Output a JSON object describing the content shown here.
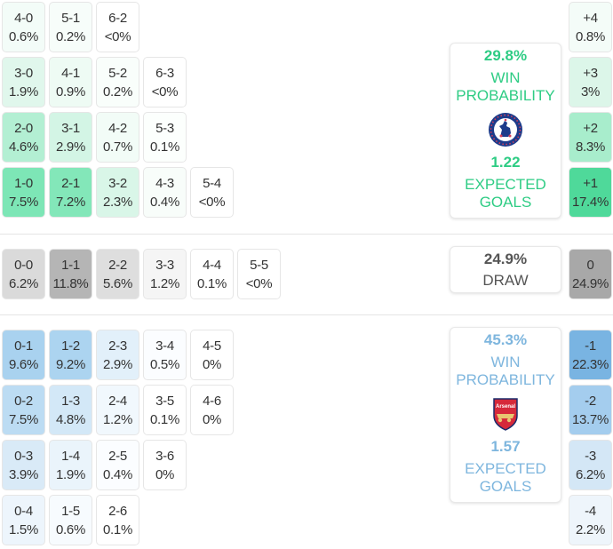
{
  "colors": {
    "home_accent": "#2ecc84",
    "away_accent": "#7eb6de",
    "draw_text": "#555555"
  },
  "home_scores": [
    [
      {
        "score": "4-0",
        "pct": "0.6%",
        "bg": "#f3fcf8"
      },
      {
        "score": "5-1",
        "pct": "0.2%",
        "bg": "#f7fdfa"
      },
      {
        "score": "6-2",
        "pct": "<0%",
        "bg": "#ffffff"
      }
    ],
    [
      {
        "score": "3-0",
        "pct": "1.9%",
        "bg": "#e0f7ec"
      },
      {
        "score": "4-1",
        "pct": "0.9%",
        "bg": "#eefbf4"
      },
      {
        "score": "5-2",
        "pct": "0.2%",
        "bg": "#f9fefb"
      },
      {
        "score": "6-3",
        "pct": "<0%",
        "bg": "#ffffff"
      }
    ],
    [
      {
        "score": "2-0",
        "pct": "4.6%",
        "bg": "#b3efd3"
      },
      {
        "score": "3-1",
        "pct": "2.9%",
        "bg": "#d3f5e5"
      },
      {
        "score": "4-2",
        "pct": "0.7%",
        "bg": "#f2fcf7"
      },
      {
        "score": "5-3",
        "pct": "0.1%",
        "bg": "#fcfffd"
      }
    ],
    [
      {
        "score": "1-0",
        "pct": "7.5%",
        "bg": "#7de6b6"
      },
      {
        "score": "2-1",
        "pct": "7.2%",
        "bg": "#83e7b9"
      },
      {
        "score": "3-2",
        "pct": "2.3%",
        "bg": "#d9f6e8"
      },
      {
        "score": "4-3",
        "pct": "0.4%",
        "bg": "#f8fdfa"
      },
      {
        "score": "5-4",
        "pct": "<0%",
        "bg": "#ffffff"
      }
    ]
  ],
  "draw_scores": [
    {
      "score": "0-0",
      "pct": "6.2%",
      "bg": "#dadada"
    },
    {
      "score": "1-1",
      "pct": "11.8%",
      "bg": "#b5b5b5"
    },
    {
      "score": "2-2",
      "pct": "5.6%",
      "bg": "#dedede"
    },
    {
      "score": "3-3",
      "pct": "1.2%",
      "bg": "#f5f5f5"
    },
    {
      "score": "4-4",
      "pct": "0.1%",
      "bg": "#ffffff"
    },
    {
      "score": "5-5",
      "pct": "<0%",
      "bg": "#ffffff"
    }
  ],
  "away_scores": [
    [
      {
        "score": "0-1",
        "pct": "9.6%",
        "bg": "#a9d2ef"
      },
      {
        "score": "1-2",
        "pct": "9.2%",
        "bg": "#acd4f0"
      },
      {
        "score": "2-3",
        "pct": "2.9%",
        "bg": "#e2f0fa"
      },
      {
        "score": "3-4",
        "pct": "0.5%",
        "bg": "#fbfdff"
      },
      {
        "score": "4-5",
        "pct": "0%",
        "bg": "#ffffff"
      }
    ],
    [
      {
        "score": "0-2",
        "pct": "7.5%",
        "bg": "#bcdcf3"
      },
      {
        "score": "1-3",
        "pct": "4.8%",
        "bg": "#d3e8f7"
      },
      {
        "score": "2-4",
        "pct": "1.2%",
        "bg": "#f1f8fd"
      },
      {
        "score": "3-5",
        "pct": "0.1%",
        "bg": "#ffffff"
      },
      {
        "score": "4-6",
        "pct": "0%",
        "bg": "#ffffff"
      }
    ],
    [
      {
        "score": "0-3",
        "pct": "3.9%",
        "bg": "#d9eaf7"
      },
      {
        "score": "1-4",
        "pct": "1.9%",
        "bg": "#eaf4fb"
      },
      {
        "score": "2-5",
        "pct": "0.4%",
        "bg": "#fbfdff"
      },
      {
        "score": "3-6",
        "pct": "0%",
        "bg": "#ffffff"
      }
    ],
    [
      {
        "score": "0-4",
        "pct": "1.5%",
        "bg": "#edf5fc"
      },
      {
        "score": "1-5",
        "pct": "0.6%",
        "bg": "#f7fbfe"
      },
      {
        "score": "2-6",
        "pct": "0.1%",
        "bg": "#ffffff"
      }
    ]
  ],
  "margins_home": [
    {
      "label": "+4",
      "pct": "0.8%",
      "bg": "#f4fcf8"
    },
    {
      "label": "+3",
      "pct": "3%",
      "bg": "#dcf6e9"
    },
    {
      "label": "+2",
      "pct": "8.3%",
      "bg": "#a8edcc"
    },
    {
      "label": "+1",
      "pct": "17.4%",
      "bg": "#4fd99a"
    }
  ],
  "margin_draw": {
    "label": "0",
    "pct": "24.9%",
    "bg": "#a8a8a8"
  },
  "margins_away": [
    {
      "label": "-1",
      "pct": "22.3%",
      "bg": "#79b4e2"
    },
    {
      "label": "-2",
      "pct": "13.7%",
      "bg": "#a4cdee"
    },
    {
      "label": "-3",
      "pct": "6.2%",
      "bg": "#d4e7f6"
    },
    {
      "label": "-4",
      "pct": "2.2%",
      "bg": "#eef5fb"
    }
  ],
  "home_card": {
    "team": "Chelsea",
    "win_pct": "29.8%",
    "win_label_1": "WIN",
    "win_label_2": "PROBABILITY",
    "crest": "chelsea-crest-icon",
    "xg": "1.22",
    "xg_label_1": "EXPECTED",
    "xg_label_2": "GOALS"
  },
  "draw_card": {
    "pct": "24.9%",
    "label": "DRAW"
  },
  "away_card": {
    "team": "Arsenal",
    "win_pct": "45.3%",
    "win_label_1": "WIN",
    "win_label_2": "PROBABILITY",
    "crest": "arsenal-crest-icon",
    "xg": "1.57",
    "xg_label_1": "EXPECTED",
    "xg_label_2": "GOALS"
  }
}
